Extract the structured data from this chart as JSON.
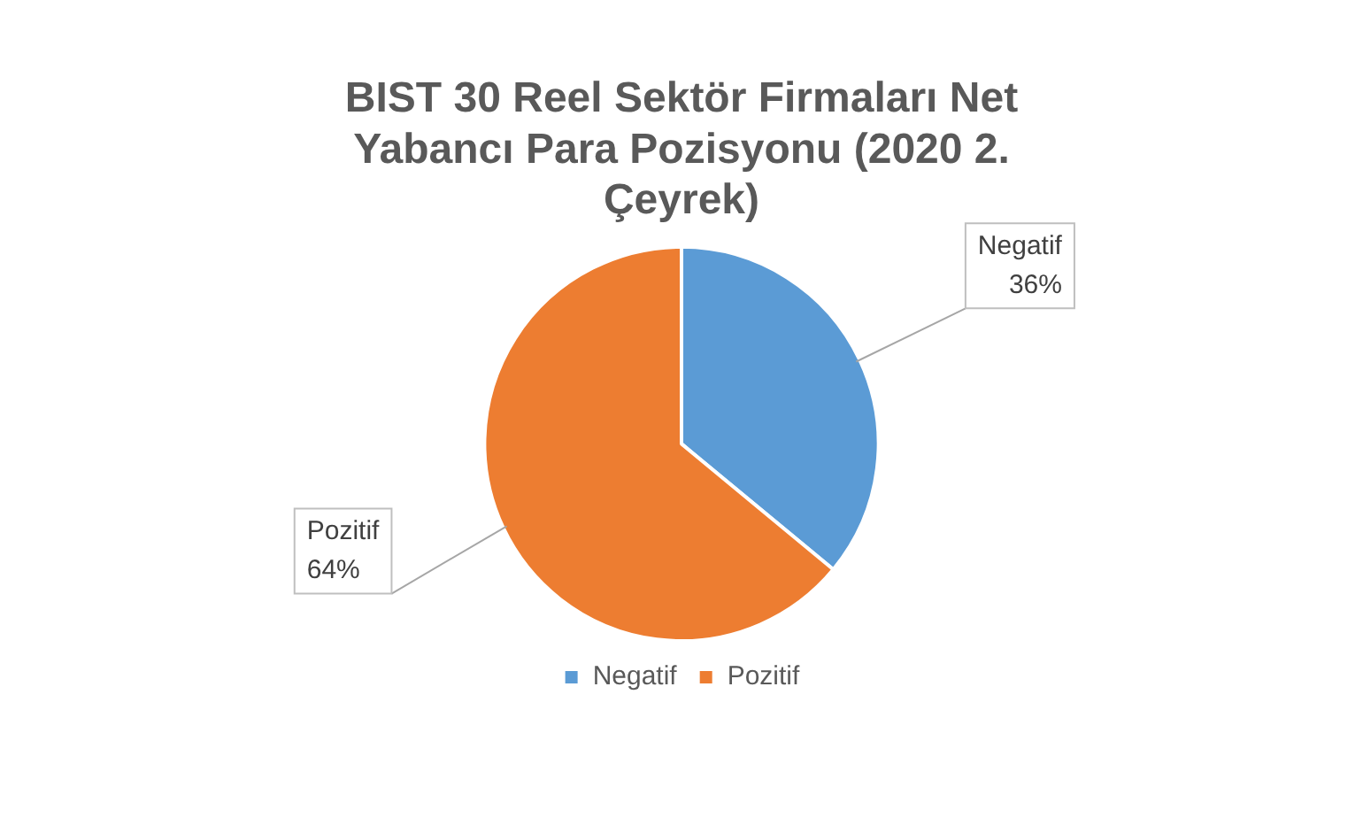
{
  "chart_data": {
    "type": "pie",
    "title": "BIST 30 Reel Sektör Firmaları Net Yabancı Para Pozisyonu (2020 2. Çeyrek)",
    "categories": [
      "Negatif",
      "Pozitif"
    ],
    "values": [
      36,
      64
    ],
    "colors": [
      "#5b9bd5",
      "#ed7d31"
    ],
    "value_labels": [
      "36%",
      "64%"
    ],
    "legend": "bottom"
  }
}
